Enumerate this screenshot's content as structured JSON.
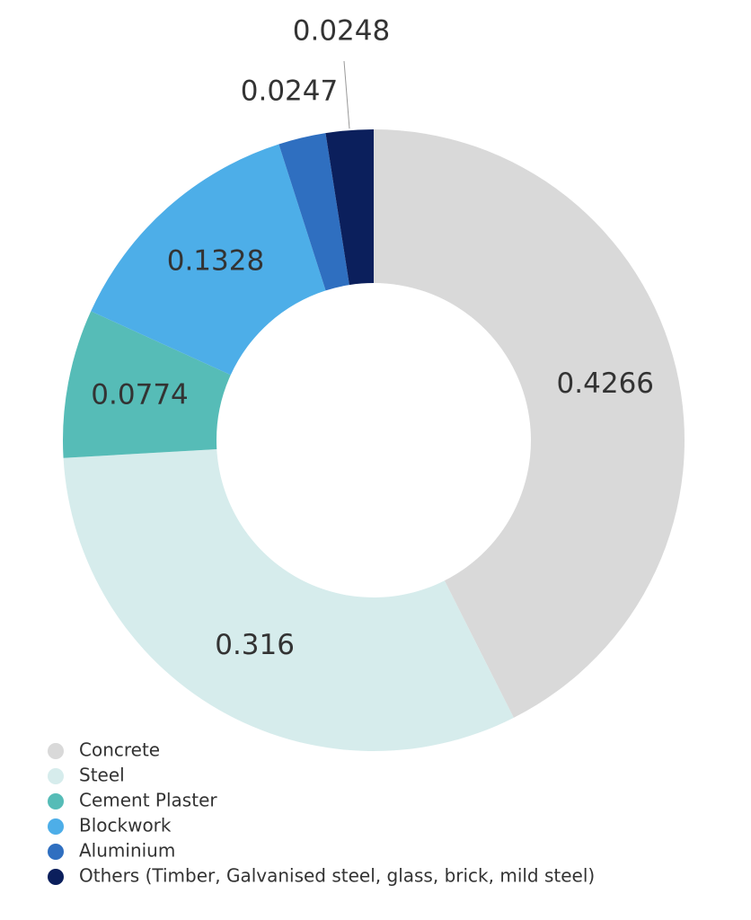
{
  "chart_data": {
    "type": "donut",
    "categories": [
      "Concrete",
      "Steel",
      "Cement Plaster",
      "Blockwork",
      "Aluminium",
      "Others (Timber, Galvanised steel, glass, brick, mild steel)"
    ],
    "values": [
      0.4266,
      0.316,
      0.0774,
      0.1328,
      0.0247,
      0.0248
    ],
    "colors": [
      "#d9d9d9",
      "#d6ecec",
      "#56bcb7",
      "#4daee8",
      "#2f6fc0",
      "#0b1f5c"
    ],
    "legend": "bottom-left"
  }
}
